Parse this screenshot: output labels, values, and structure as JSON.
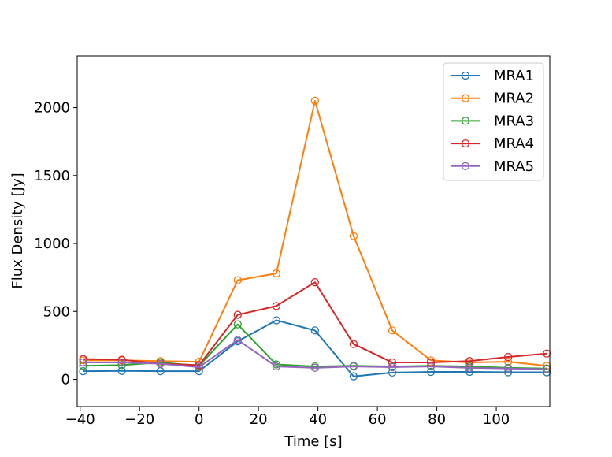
{
  "chart_data": {
    "type": "line",
    "title": "",
    "xlabel": "Time [s]",
    "ylabel": "Flux Density [Jy]",
    "xlim": [
      -41,
      118
    ],
    "ylim": [
      -200,
      2380
    ],
    "xticks": [
      -40,
      -20,
      0,
      20,
      40,
      60,
      80,
      100
    ],
    "xtick_labels": [
      "−40",
      "−20",
      "0",
      "20",
      "40",
      "60",
      "80",
      "100"
    ],
    "yticks": [
      0,
      500,
      1000,
      1500,
      2000
    ],
    "ytick_labels": [
      "0",
      "500",
      "1000",
      "1500",
      "2000"
    ],
    "grid": false,
    "legend_position": "top-right",
    "marker": "hollow-circle",
    "x": [
      -39,
      -26,
      -13,
      0,
      13,
      26,
      39,
      52,
      65,
      78,
      91,
      104,
      117
    ],
    "series": [
      {
        "name": "MRA1",
        "color": "#1f77b4",
        "values": [
          60,
          62,
          60,
          60,
          280,
          435,
          360,
          22,
          50,
          55,
          55,
          52,
          52
        ]
      },
      {
        "name": "MRA2",
        "color": "#ff7f0e",
        "values": [
          140,
          140,
          135,
          130,
          730,
          780,
          2050,
          1055,
          360,
          140,
          125,
          130,
          100
        ]
      },
      {
        "name": "MRA3",
        "color": "#2ca02c",
        "values": [
          100,
          105,
          125,
          100,
          405,
          110,
          95,
          100,
          95,
          100,
          95,
          85,
          80
        ]
      },
      {
        "name": "MRA4",
        "color": "#d62728",
        "values": [
          150,
          145,
          115,
          105,
          475,
          540,
          715,
          260,
          125,
          125,
          135,
          165,
          190
        ]
      },
      {
        "name": "MRA5",
        "color": "#9467bd",
        "values": [
          125,
          125,
          115,
          90,
          290,
          95,
          85,
          95,
          90,
          95,
          85,
          80,
          75
        ]
      }
    ]
  }
}
